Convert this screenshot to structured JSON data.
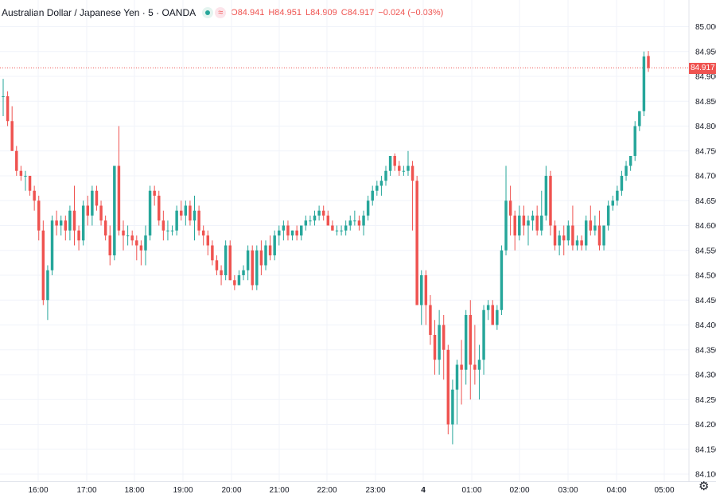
{
  "header": {
    "symbol_title": "Australian Dollar / Japanese Yen · 5 · OANDA",
    "ohlc": [
      {
        "key": "O",
        "value": "84.941"
      },
      {
        "key": "H",
        "value": "84.951"
      },
      {
        "key": "L",
        "value": "84.909"
      },
      {
        "key": "C",
        "value": "84.917"
      }
    ],
    "change": "−0.024 (−0.03%)",
    "market_status_icon": "green-dot-icon",
    "indicator_icon": "wave-icon"
  },
  "last_price_label": "84.917",
  "settings_icon": "gear-icon",
  "colors": {
    "up": "#26a69a",
    "down": "#ef5350",
    "grid": "#f0f3fa",
    "text": "#131722"
  },
  "chart_data": {
    "type": "candlestick",
    "title": "Australian Dollar / Japanese Yen · 5 · OANDA",
    "xlabel": "",
    "ylabel": "",
    "ylim": [
      84.07,
      85.03
    ],
    "grid": true,
    "y_ticks": [
      "85.000",
      "84.950",
      "84.900",
      "84.850",
      "84.800",
      "84.750",
      "84.700",
      "84.650",
      "84.600",
      "84.550",
      "84.500",
      "84.450",
      "84.400",
      "84.350",
      "84.300",
      "84.250",
      "84.200",
      "84.150",
      "84.100"
    ],
    "x_ticks": [
      "16:00",
      "17:00",
      "18:00",
      "19:00",
      "20:00",
      "21:00",
      "22:00",
      "23:00",
      "4",
      "01:00",
      "02:00",
      "03:00",
      "04:00",
      "05:00"
    ],
    "last_price": 84.917,
    "candles": [
      {
        "o": 84.86,
        "h": 84.895,
        "l": 84.82,
        "c": 84.86
      },
      {
        "o": 84.86,
        "h": 84.87,
        "l": 84.8,
        "c": 84.81
      },
      {
        "o": 84.81,
        "h": 84.84,
        "l": 84.75,
        "c": 84.75
      },
      {
        "o": 84.75,
        "h": 84.76,
        "l": 84.7,
        "c": 84.71
      },
      {
        "o": 84.71,
        "h": 84.72,
        "l": 84.69,
        "c": 84.7
      },
      {
        "o": 84.7,
        "h": 84.71,
        "l": 84.67,
        "c": 84.7
      },
      {
        "o": 84.7,
        "h": 84.7,
        "l": 84.66,
        "c": 84.67
      },
      {
        "o": 84.67,
        "h": 84.68,
        "l": 84.63,
        "c": 84.65
      },
      {
        "o": 84.65,
        "h": 84.66,
        "l": 84.57,
        "c": 84.59
      },
      {
        "o": 84.59,
        "h": 84.61,
        "l": 84.44,
        "c": 84.45
      },
      {
        "o": 84.45,
        "h": 84.52,
        "l": 84.41,
        "c": 84.51
      },
      {
        "o": 84.51,
        "h": 84.62,
        "l": 84.5,
        "c": 84.61
      },
      {
        "o": 84.61,
        "h": 84.63,
        "l": 84.58,
        "c": 84.6
      },
      {
        "o": 84.6,
        "h": 84.62,
        "l": 84.58,
        "c": 84.61
      },
      {
        "o": 84.61,
        "h": 84.62,
        "l": 84.57,
        "c": 84.59
      },
      {
        "o": 84.59,
        "h": 84.64,
        "l": 84.57,
        "c": 84.63
      },
      {
        "o": 84.63,
        "h": 84.68,
        "l": 84.56,
        "c": 84.59
      },
      {
        "o": 84.59,
        "h": 84.6,
        "l": 84.55,
        "c": 84.57
      },
      {
        "o": 84.57,
        "h": 84.65,
        "l": 84.56,
        "c": 84.64
      },
      {
        "o": 84.64,
        "h": 84.66,
        "l": 84.6,
        "c": 84.62
      },
      {
        "o": 84.62,
        "h": 84.68,
        "l": 84.6,
        "c": 84.67
      },
      {
        "o": 84.67,
        "h": 84.68,
        "l": 84.63,
        "c": 84.64
      },
      {
        "o": 84.64,
        "h": 84.65,
        "l": 84.6,
        "c": 84.61
      },
      {
        "o": 84.61,
        "h": 84.62,
        "l": 84.57,
        "c": 84.58
      },
      {
        "o": 84.58,
        "h": 84.6,
        "l": 84.52,
        "c": 84.54
      },
      {
        "o": 84.54,
        "h": 84.72,
        "l": 84.53,
        "c": 84.72
      },
      {
        "o": 84.72,
        "h": 84.8,
        "l": 84.58,
        "c": 84.59
      },
      {
        "o": 84.59,
        "h": 84.61,
        "l": 84.55,
        "c": 84.58
      },
      {
        "o": 84.58,
        "h": 84.6,
        "l": 84.56,
        "c": 84.58
      },
      {
        "o": 84.58,
        "h": 84.59,
        "l": 84.56,
        "c": 84.57
      },
      {
        "o": 84.57,
        "h": 84.58,
        "l": 84.53,
        "c": 84.56
      },
      {
        "o": 84.56,
        "h": 84.57,
        "l": 84.52,
        "c": 84.55
      },
      {
        "o": 84.55,
        "h": 84.6,
        "l": 84.52,
        "c": 84.58
      },
      {
        "o": 84.58,
        "h": 84.68,
        "l": 84.57,
        "c": 84.67
      },
      {
        "o": 84.67,
        "h": 84.68,
        "l": 84.64,
        "c": 84.66
      },
      {
        "o": 84.66,
        "h": 84.67,
        "l": 84.6,
        "c": 84.61
      },
      {
        "o": 84.61,
        "h": 84.63,
        "l": 84.57,
        "c": 84.59
      },
      {
        "o": 84.59,
        "h": 84.61,
        "l": 84.57,
        "c": 84.59
      },
      {
        "o": 84.59,
        "h": 84.6,
        "l": 84.58,
        "c": 84.59
      },
      {
        "o": 84.59,
        "h": 84.64,
        "l": 84.58,
        "c": 84.63
      },
      {
        "o": 84.63,
        "h": 84.65,
        "l": 84.61,
        "c": 84.62
      },
      {
        "o": 84.62,
        "h": 84.65,
        "l": 84.6,
        "c": 84.64
      },
      {
        "o": 84.64,
        "h": 84.65,
        "l": 84.6,
        "c": 84.61
      },
      {
        "o": 84.61,
        "h": 84.66,
        "l": 84.57,
        "c": 84.63
      },
      {
        "o": 84.63,
        "h": 84.64,
        "l": 84.58,
        "c": 84.59
      },
      {
        "o": 84.59,
        "h": 84.6,
        "l": 84.56,
        "c": 84.58
      },
      {
        "o": 84.58,
        "h": 84.59,
        "l": 84.54,
        "c": 84.56
      },
      {
        "o": 84.56,
        "h": 84.57,
        "l": 84.52,
        "c": 84.53
      },
      {
        "o": 84.53,
        "h": 84.54,
        "l": 84.5,
        "c": 84.51
      },
      {
        "o": 84.51,
        "h": 84.52,
        "l": 84.48,
        "c": 84.5
      },
      {
        "o": 84.5,
        "h": 84.57,
        "l": 84.49,
        "c": 84.56
      },
      {
        "o": 84.56,
        "h": 84.57,
        "l": 84.49,
        "c": 84.49
      },
      {
        "o": 84.49,
        "h": 84.5,
        "l": 84.47,
        "c": 84.48
      },
      {
        "o": 84.48,
        "h": 84.51,
        "l": 84.48,
        "c": 84.5
      },
      {
        "o": 84.5,
        "h": 84.52,
        "l": 84.49,
        "c": 84.51
      },
      {
        "o": 84.51,
        "h": 84.56,
        "l": 84.49,
        "c": 84.55
      },
      {
        "o": 84.55,
        "h": 84.56,
        "l": 84.47,
        "c": 84.48
      },
      {
        "o": 84.48,
        "h": 84.56,
        "l": 84.47,
        "c": 84.55
      },
      {
        "o": 84.55,
        "h": 84.57,
        "l": 84.5,
        "c": 84.52
      },
      {
        "o": 84.52,
        "h": 84.57,
        "l": 84.51,
        "c": 84.56
      },
      {
        "o": 84.56,
        "h": 84.58,
        "l": 84.53,
        "c": 84.54
      },
      {
        "o": 84.54,
        "h": 84.59,
        "l": 84.53,
        "c": 84.58
      },
      {
        "o": 84.58,
        "h": 84.6,
        "l": 84.56,
        "c": 84.59
      },
      {
        "o": 84.59,
        "h": 84.61,
        "l": 84.57,
        "c": 84.6
      },
      {
        "o": 84.6,
        "h": 84.61,
        "l": 84.57,
        "c": 84.58
      },
      {
        "o": 84.58,
        "h": 84.59,
        "l": 84.57,
        "c": 84.59
      },
      {
        "o": 84.59,
        "h": 84.6,
        "l": 84.57,
        "c": 84.58
      },
      {
        "o": 84.58,
        "h": 84.6,
        "l": 84.57,
        "c": 84.6
      },
      {
        "o": 84.6,
        "h": 84.62,
        "l": 84.59,
        "c": 84.61
      },
      {
        "o": 84.61,
        "h": 84.62,
        "l": 84.6,
        "c": 84.61
      },
      {
        "o": 84.61,
        "h": 84.63,
        "l": 84.6,
        "c": 84.62
      },
      {
        "o": 84.62,
        "h": 84.64,
        "l": 84.61,
        "c": 84.63
      },
      {
        "o": 84.63,
        "h": 84.64,
        "l": 84.61,
        "c": 84.62
      },
      {
        "o": 84.62,
        "h": 84.63,
        "l": 84.6,
        "c": 84.6
      },
      {
        "o": 84.6,
        "h": 84.61,
        "l": 84.59,
        "c": 84.59
      },
      {
        "o": 84.59,
        "h": 84.6,
        "l": 84.58,
        "c": 84.59
      },
      {
        "o": 84.59,
        "h": 84.6,
        "l": 84.58,
        "c": 84.59
      },
      {
        "o": 84.59,
        "h": 84.61,
        "l": 84.58,
        "c": 84.6
      },
      {
        "o": 84.6,
        "h": 84.62,
        "l": 84.59,
        "c": 84.61
      },
      {
        "o": 84.61,
        "h": 84.63,
        "l": 84.6,
        "c": 84.61
      },
      {
        "o": 84.61,
        "h": 84.62,
        "l": 84.59,
        "c": 84.6
      },
      {
        "o": 84.6,
        "h": 84.63,
        "l": 84.58,
        "c": 84.62
      },
      {
        "o": 84.62,
        "h": 84.66,
        "l": 84.61,
        "c": 84.65
      },
      {
        "o": 84.65,
        "h": 84.68,
        "l": 84.64,
        "c": 84.67
      },
      {
        "o": 84.67,
        "h": 84.69,
        "l": 84.66,
        "c": 84.68
      },
      {
        "o": 84.68,
        "h": 84.7,
        "l": 84.66,
        "c": 84.69
      },
      {
        "o": 84.69,
        "h": 84.72,
        "l": 84.68,
        "c": 84.71
      },
      {
        "o": 84.71,
        "h": 84.74,
        "l": 84.7,
        "c": 84.74
      },
      {
        "o": 84.74,
        "h": 84.745,
        "l": 84.71,
        "c": 84.72
      },
      {
        "o": 84.72,
        "h": 84.73,
        "l": 84.7,
        "c": 84.71
      },
      {
        "o": 84.71,
        "h": 84.72,
        "l": 84.7,
        "c": 84.71
      },
      {
        "o": 84.71,
        "h": 84.75,
        "l": 84.7,
        "c": 84.72
      },
      {
        "o": 84.72,
        "h": 84.73,
        "l": 84.59,
        "c": 84.69
      },
      {
        "o": 84.69,
        "h": 84.7,
        "l": 84.44,
        "c": 84.44
      },
      {
        "o": 84.44,
        "h": 84.51,
        "l": 84.4,
        "c": 84.5
      },
      {
        "o": 84.5,
        "h": 84.51,
        "l": 84.4,
        "c": 84.44
      },
      {
        "o": 84.44,
        "h": 84.46,
        "l": 84.36,
        "c": 84.38
      },
      {
        "o": 84.38,
        "h": 84.41,
        "l": 84.3,
        "c": 84.33
      },
      {
        "o": 84.33,
        "h": 84.43,
        "l": 84.3,
        "c": 84.4
      },
      {
        "o": 84.4,
        "h": 84.42,
        "l": 84.29,
        "c": 84.35
      },
      {
        "o": 84.35,
        "h": 84.36,
        "l": 84.18,
        "c": 84.2
      },
      {
        "o": 84.2,
        "h": 84.29,
        "l": 84.16,
        "c": 84.27
      },
      {
        "o": 84.27,
        "h": 84.33,
        "l": 84.2,
        "c": 84.32
      },
      {
        "o": 84.32,
        "h": 84.37,
        "l": 84.24,
        "c": 84.31
      },
      {
        "o": 84.31,
        "h": 84.43,
        "l": 84.28,
        "c": 84.42
      },
      {
        "o": 84.42,
        "h": 84.45,
        "l": 84.25,
        "c": 84.32
      },
      {
        "o": 84.32,
        "h": 84.4,
        "l": 84.28,
        "c": 84.31
      },
      {
        "o": 84.31,
        "h": 84.36,
        "l": 84.25,
        "c": 84.33
      },
      {
        "o": 84.33,
        "h": 84.44,
        "l": 84.3,
        "c": 84.43
      },
      {
        "o": 84.43,
        "h": 84.45,
        "l": 84.41,
        "c": 84.44
      },
      {
        "o": 84.44,
        "h": 84.45,
        "l": 84.4,
        "c": 84.4
      },
      {
        "o": 84.4,
        "h": 84.44,
        "l": 84.39,
        "c": 84.43
      },
      {
        "o": 84.43,
        "h": 84.56,
        "l": 84.42,
        "c": 84.55
      },
      {
        "o": 84.55,
        "h": 84.72,
        "l": 84.54,
        "c": 84.65
      },
      {
        "o": 84.65,
        "h": 84.68,
        "l": 84.58,
        "c": 84.62
      },
      {
        "o": 84.62,
        "h": 84.63,
        "l": 84.55,
        "c": 84.58
      },
      {
        "o": 84.58,
        "h": 84.64,
        "l": 84.57,
        "c": 84.62
      },
      {
        "o": 84.62,
        "h": 84.64,
        "l": 84.58,
        "c": 84.6
      },
      {
        "o": 84.6,
        "h": 84.62,
        "l": 84.56,
        "c": 84.61
      },
      {
        "o": 84.61,
        "h": 84.63,
        "l": 84.59,
        "c": 84.62
      },
      {
        "o": 84.62,
        "h": 84.64,
        "l": 84.58,
        "c": 84.59
      },
      {
        "o": 84.59,
        "h": 84.67,
        "l": 84.58,
        "c": 84.62
      },
      {
        "o": 84.62,
        "h": 84.72,
        "l": 84.61,
        "c": 84.7
      },
      {
        "o": 84.7,
        "h": 84.71,
        "l": 84.58,
        "c": 84.6
      },
      {
        "o": 84.6,
        "h": 84.61,
        "l": 84.55,
        "c": 84.56
      },
      {
        "o": 84.56,
        "h": 84.59,
        "l": 84.54,
        "c": 84.58
      },
      {
        "o": 84.58,
        "h": 84.6,
        "l": 84.54,
        "c": 84.57
      },
      {
        "o": 84.57,
        "h": 84.61,
        "l": 84.56,
        "c": 84.6
      },
      {
        "o": 84.6,
        "h": 84.64,
        "l": 84.55,
        "c": 84.56
      },
      {
        "o": 84.56,
        "h": 84.58,
        "l": 84.55,
        "c": 84.57
      },
      {
        "o": 84.57,
        "h": 84.58,
        "l": 84.55,
        "c": 84.56
      },
      {
        "o": 84.56,
        "h": 84.62,
        "l": 84.55,
        "c": 84.61
      },
      {
        "o": 84.61,
        "h": 84.64,
        "l": 84.58,
        "c": 84.59
      },
      {
        "o": 84.59,
        "h": 84.62,
        "l": 84.58,
        "c": 84.6
      },
      {
        "o": 84.6,
        "h": 84.63,
        "l": 84.55,
        "c": 84.56
      },
      {
        "o": 84.56,
        "h": 84.6,
        "l": 84.55,
        "c": 84.6
      },
      {
        "o": 84.6,
        "h": 84.65,
        "l": 84.59,
        "c": 84.64
      },
      {
        "o": 84.64,
        "h": 84.66,
        "l": 84.63,
        "c": 84.65
      },
      {
        "o": 84.65,
        "h": 84.68,
        "l": 84.64,
        "c": 84.67
      },
      {
        "o": 84.67,
        "h": 84.71,
        "l": 84.66,
        "c": 84.7
      },
      {
        "o": 84.7,
        "h": 84.73,
        "l": 84.69,
        "c": 84.72
      },
      {
        "o": 84.72,
        "h": 84.74,
        "l": 84.71,
        "c": 84.74
      },
      {
        "o": 84.74,
        "h": 84.81,
        "l": 84.73,
        "c": 84.8
      },
      {
        "o": 84.8,
        "h": 84.83,
        "l": 84.79,
        "c": 84.83
      },
      {
        "o": 84.83,
        "h": 84.95,
        "l": 84.82,
        "c": 84.94
      },
      {
        "o": 84.941,
        "h": 84.951,
        "l": 84.909,
        "c": 84.917
      }
    ]
  }
}
